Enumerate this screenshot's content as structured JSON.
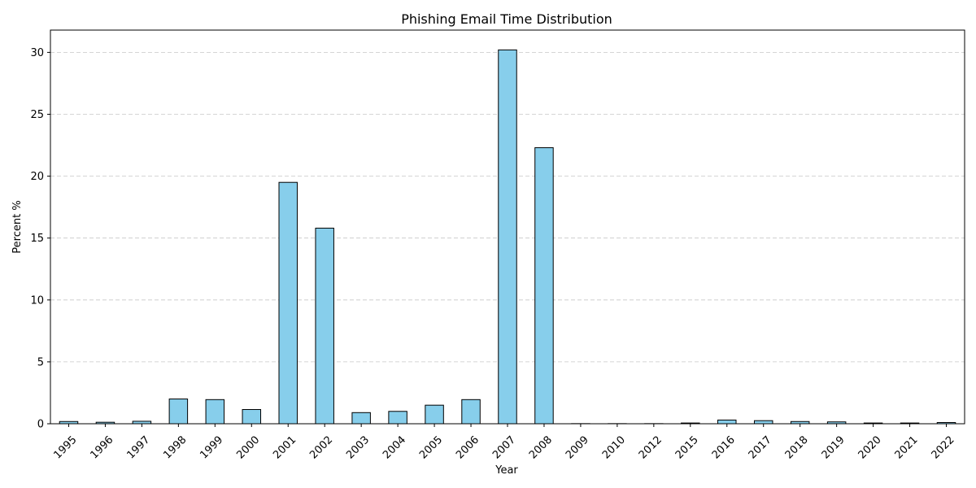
{
  "chart_data": {
    "type": "bar",
    "title": "Phishing Email Time Distribution",
    "xlabel": "Year",
    "ylabel": "Percent %",
    "categories": [
      "1995",
      "1996",
      "1997",
      "1998",
      "1999",
      "2000",
      "2001",
      "2002",
      "2003",
      "2004",
      "2005",
      "2006",
      "2007",
      "2008",
      "2009",
      "2010",
      "2012",
      "2015",
      "2016",
      "2017",
      "2018",
      "2019",
      "2020",
      "2021",
      "2022"
    ],
    "values": [
      0.18,
      0.12,
      0.2,
      2.0,
      1.95,
      1.15,
      19.5,
      15.8,
      0.9,
      1.0,
      1.5,
      1.95,
      30.2,
      22.3,
      0.01,
      0.01,
      0.01,
      0.06,
      0.3,
      0.25,
      0.18,
      0.15,
      0.06,
      0.06,
      0.1
    ],
    "ylim": [
      0,
      31.8
    ],
    "yticks": [
      0,
      5,
      10,
      15,
      20,
      25,
      30
    ],
    "grid": "y-dashed",
    "bar_color": "#87ceeb",
    "edge_color": "#000000"
  }
}
